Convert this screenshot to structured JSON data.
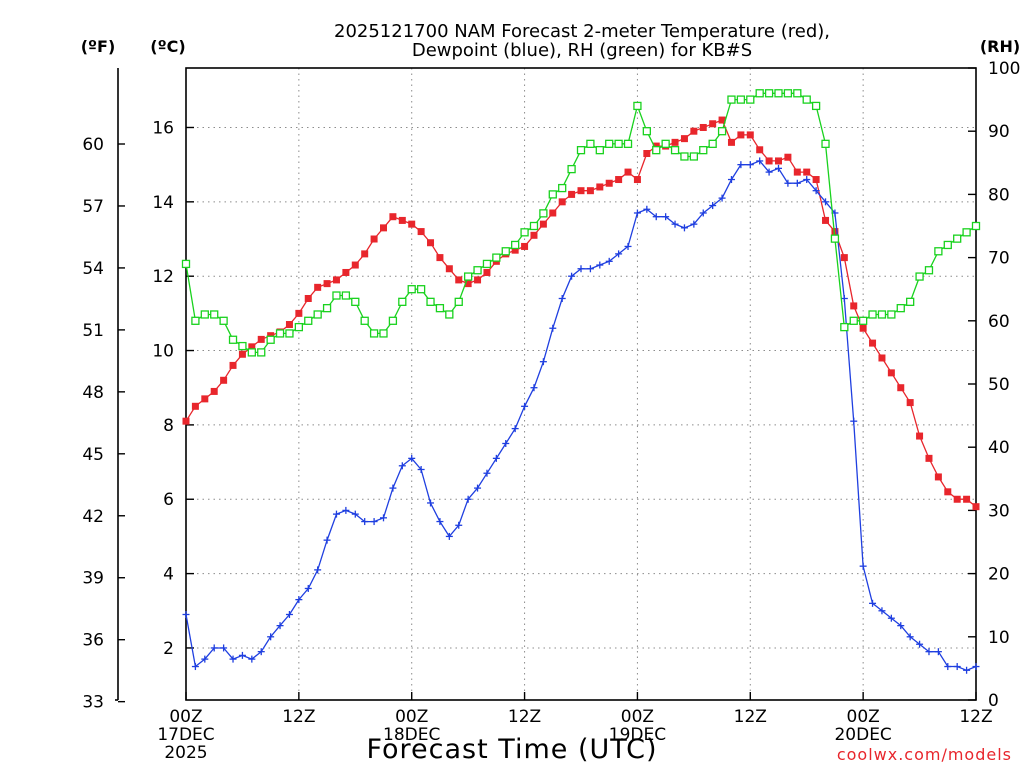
{
  "chart_data": {
    "type": "line",
    "title_line1": "2025121700 NAM Forecast 2-meter Temperature (red),",
    "title_line2": "Dewpoint (blue), RH (green) for KB#S",
    "xlabel": "Forecast Time (UTC)",
    "credit": "coolwx.com/models",
    "units": {
      "fahrenheit": "(ºF)",
      "celsius": "(ºC)",
      "rh": "(RH)"
    },
    "x_range_hours": [
      0,
      84
    ],
    "x_ticks": [
      {
        "hour": 0,
        "line1": "00Z",
        "line2": "17DEC",
        "line3": "2025"
      },
      {
        "hour": 12,
        "line1": "12Z",
        "line2": "",
        "line3": ""
      },
      {
        "hour": 24,
        "line1": "00Z",
        "line2": "18DEC",
        "line3": ""
      },
      {
        "hour": 36,
        "line1": "12Z",
        "line2": "",
        "line3": ""
      },
      {
        "hour": 48,
        "line1": "00Z",
        "line2": "19DEC",
        "line3": ""
      },
      {
        "hour": 60,
        "line1": "12Z",
        "line2": "",
        "line3": ""
      },
      {
        "hour": 72,
        "line1": "00Z",
        "line2": "20DEC",
        "line3": ""
      },
      {
        "hour": 84,
        "line1": "12Z",
        "line2": "",
        "line3": ""
      }
    ],
    "y_left_celsius": {
      "range": [
        0.6,
        17.6
      ],
      "ticks": [
        2,
        4,
        6,
        8,
        10,
        12,
        14,
        16
      ]
    },
    "y_left_fahrenheit": {
      "ticks": [
        33,
        36,
        39,
        42,
        45,
        48,
        51,
        54,
        57,
        60
      ]
    },
    "y_right_rh": {
      "range": [
        0,
        100
      ],
      "ticks": [
        0,
        10,
        20,
        30,
        40,
        50,
        60,
        70,
        80,
        90,
        100
      ]
    },
    "grid": true,
    "series": [
      {
        "name": "Temperature",
        "color": "#e8262c",
        "marker": "filled-square",
        "axis": "celsius",
        "x": [
          0,
          1,
          2,
          3,
          4,
          5,
          6,
          7,
          8,
          9,
          10,
          11,
          12,
          13,
          14,
          15,
          16,
          17,
          18,
          19,
          20,
          21,
          22,
          23,
          24,
          25,
          26,
          27,
          28,
          29,
          30,
          31,
          32,
          33,
          34,
          35,
          36,
          37,
          38,
          39,
          40,
          41,
          42,
          43,
          44,
          45,
          46,
          47,
          48,
          49,
          50,
          51,
          52,
          53,
          54,
          55,
          56,
          57,
          58,
          59,
          60,
          61,
          62,
          63,
          64,
          65,
          66,
          67,
          68,
          69,
          70,
          71,
          72,
          73,
          74,
          75,
          76,
          77,
          78,
          79,
          80,
          81,
          82,
          83,
          84
        ],
        "values": [
          8.1,
          8.5,
          8.7,
          8.9,
          9.2,
          9.6,
          9.9,
          10.1,
          10.3,
          10.4,
          10.5,
          10.7,
          11.0,
          11.4,
          11.7,
          11.8,
          11.9,
          12.1,
          12.3,
          12.6,
          13.0,
          13.3,
          13.6,
          13.5,
          13.4,
          13.2,
          12.9,
          12.5,
          12.2,
          11.9,
          11.8,
          11.9,
          12.1,
          12.4,
          12.6,
          12.7,
          12.8,
          13.1,
          13.4,
          13.7,
          14.0,
          14.2,
          14.3,
          14.3,
          14.4,
          14.5,
          14.6,
          14.8,
          14.6,
          15.3,
          15.5,
          15.5,
          15.6,
          15.7,
          15.9,
          16.0,
          16.1,
          16.2,
          15.6,
          15.8,
          15.8,
          15.4,
          15.1,
          15.1,
          15.2,
          14.8,
          14.8,
          14.6,
          13.5,
          13.2,
          12.5,
          11.2,
          10.6,
          10.2,
          9.8,
          9.4,
          9.0,
          8.6,
          7.7,
          7.1,
          6.6,
          6.2,
          6.0,
          6.0,
          5.8
        ]
      },
      {
        "name": "Dewpoint",
        "color": "#1f3fe0",
        "marker": "plus",
        "axis": "celsius",
        "x": [
          0,
          1,
          2,
          3,
          4,
          5,
          6,
          7,
          8,
          9,
          10,
          11,
          12,
          13,
          14,
          15,
          16,
          17,
          18,
          19,
          20,
          21,
          22,
          23,
          24,
          25,
          26,
          27,
          28,
          29,
          30,
          31,
          32,
          33,
          34,
          35,
          36,
          37,
          38,
          39,
          40,
          41,
          42,
          43,
          44,
          45,
          46,
          47,
          48,
          49,
          50,
          51,
          52,
          53,
          54,
          55,
          56,
          57,
          58,
          59,
          60,
          61,
          62,
          63,
          64,
          65,
          66,
          67,
          68,
          69,
          70,
          71,
          72,
          73,
          74,
          75,
          76,
          77,
          78,
          79,
          80,
          81,
          82,
          83,
          84
        ],
        "values": [
          2.9,
          1.5,
          1.7,
          2.0,
          2.0,
          1.7,
          1.8,
          1.7,
          1.9,
          2.3,
          2.6,
          2.9,
          3.3,
          3.6,
          4.1,
          4.9,
          5.6,
          5.7,
          5.6,
          5.4,
          5.4,
          5.5,
          6.3,
          6.9,
          7.1,
          6.8,
          5.9,
          5.4,
          5.0,
          5.3,
          6.0,
          6.3,
          6.7,
          7.1,
          7.5,
          7.9,
          8.5,
          9.0,
          9.7,
          10.6,
          11.4,
          12.0,
          12.2,
          12.2,
          12.3,
          12.4,
          12.6,
          12.8,
          13.7,
          13.8,
          13.6,
          13.6,
          13.4,
          13.3,
          13.4,
          13.7,
          13.9,
          14.1,
          14.6,
          15.0,
          15.0,
          15.1,
          14.8,
          14.9,
          14.5,
          14.5,
          14.6,
          14.3,
          14.0,
          13.7,
          11.4,
          8.1,
          4.2,
          3.2,
          3.0,
          2.8,
          2.6,
          2.3,
          2.1,
          1.9,
          1.9,
          1.5,
          1.5,
          1.4,
          1.5
        ]
      },
      {
        "name": "RH",
        "color": "#19d21e",
        "marker": "open-square",
        "axis": "rh",
        "x": [
          0,
          1,
          2,
          3,
          4,
          5,
          6,
          7,
          8,
          9,
          10,
          11,
          12,
          13,
          14,
          15,
          16,
          17,
          18,
          19,
          20,
          21,
          22,
          23,
          24,
          25,
          26,
          27,
          28,
          29,
          30,
          31,
          32,
          33,
          34,
          35,
          36,
          37,
          38,
          39,
          40,
          41,
          42,
          43,
          44,
          45,
          46,
          47,
          48,
          49,
          50,
          51,
          52,
          53,
          54,
          55,
          56,
          57,
          58,
          59,
          60,
          61,
          62,
          63,
          64,
          65,
          66,
          67,
          68,
          69,
          70,
          71,
          72,
          73,
          74,
          75,
          76,
          77,
          78,
          79,
          80,
          81,
          82,
          83,
          84
        ],
        "values": [
          69,
          60,
          61,
          61,
          60,
          57,
          56,
          55,
          55,
          57,
          58,
          58,
          59,
          60,
          61,
          62,
          64,
          64,
          63,
          60,
          58,
          58,
          60,
          63,
          65,
          65,
          63,
          62,
          61,
          63,
          67,
          68,
          69,
          70,
          71,
          72,
          74,
          75,
          77,
          80,
          81,
          84,
          87,
          88,
          87,
          88,
          88,
          88,
          94,
          90,
          87,
          88,
          87,
          86,
          86,
          87,
          88,
          90,
          95,
          95,
          95,
          96,
          96,
          96,
          96,
          96,
          95,
          94,
          88,
          73,
          59,
          60,
          60,
          61,
          61,
          61,
          62,
          63,
          67,
          68,
          71,
          72,
          73,
          74,
          75
        ]
      }
    ]
  }
}
